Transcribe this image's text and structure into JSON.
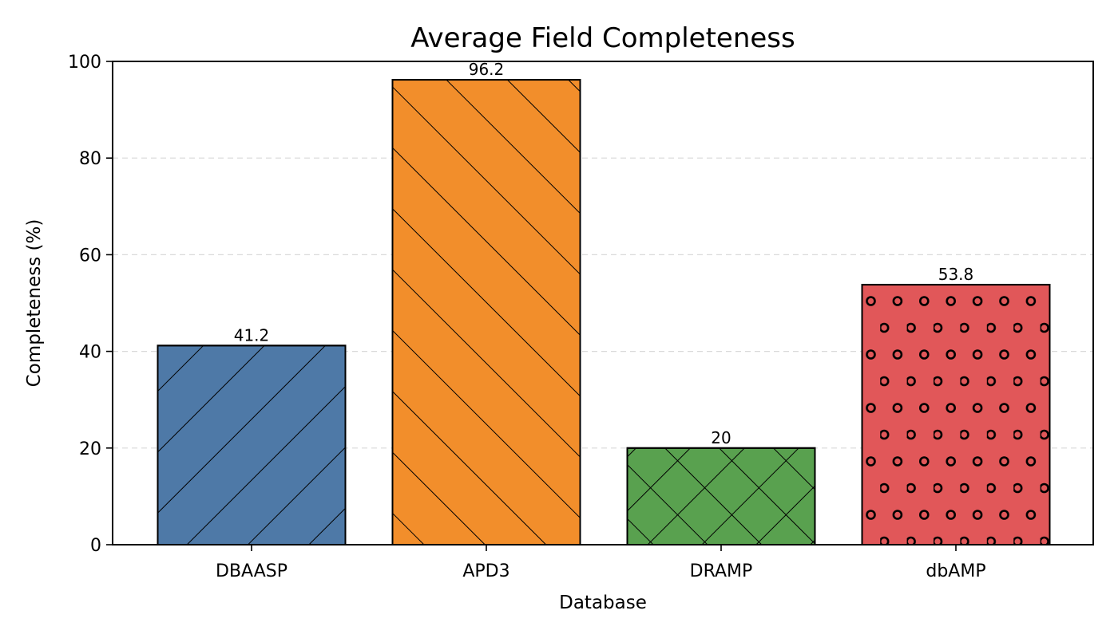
{
  "chart_data": {
    "type": "bar",
    "title": "Average Field Completeness",
    "xlabel": "Database",
    "ylabel": "Completeness (%)",
    "categories": [
      "DBAASP",
      "APD3",
      "DRAMP",
      "dbAMP"
    ],
    "values": [
      41.2,
      96.2,
      20,
      53.8
    ],
    "value_labels": [
      "41.2",
      "96.2",
      "20",
      "53.8"
    ],
    "ylim": [
      0,
      100
    ],
    "yticks": [
      0,
      20,
      40,
      60,
      80,
      100
    ],
    "ytick_labels": [
      "0",
      "20",
      "40",
      "60",
      "80",
      "100"
    ],
    "grid": "y-dashed",
    "colors": [
      "#4e79a7",
      "#f28e2b",
      "#59a14f",
      "#e15759"
    ],
    "hatches": [
      "forward-diagonal",
      "back-diagonal",
      "crosshatch",
      "circles"
    ]
  }
}
